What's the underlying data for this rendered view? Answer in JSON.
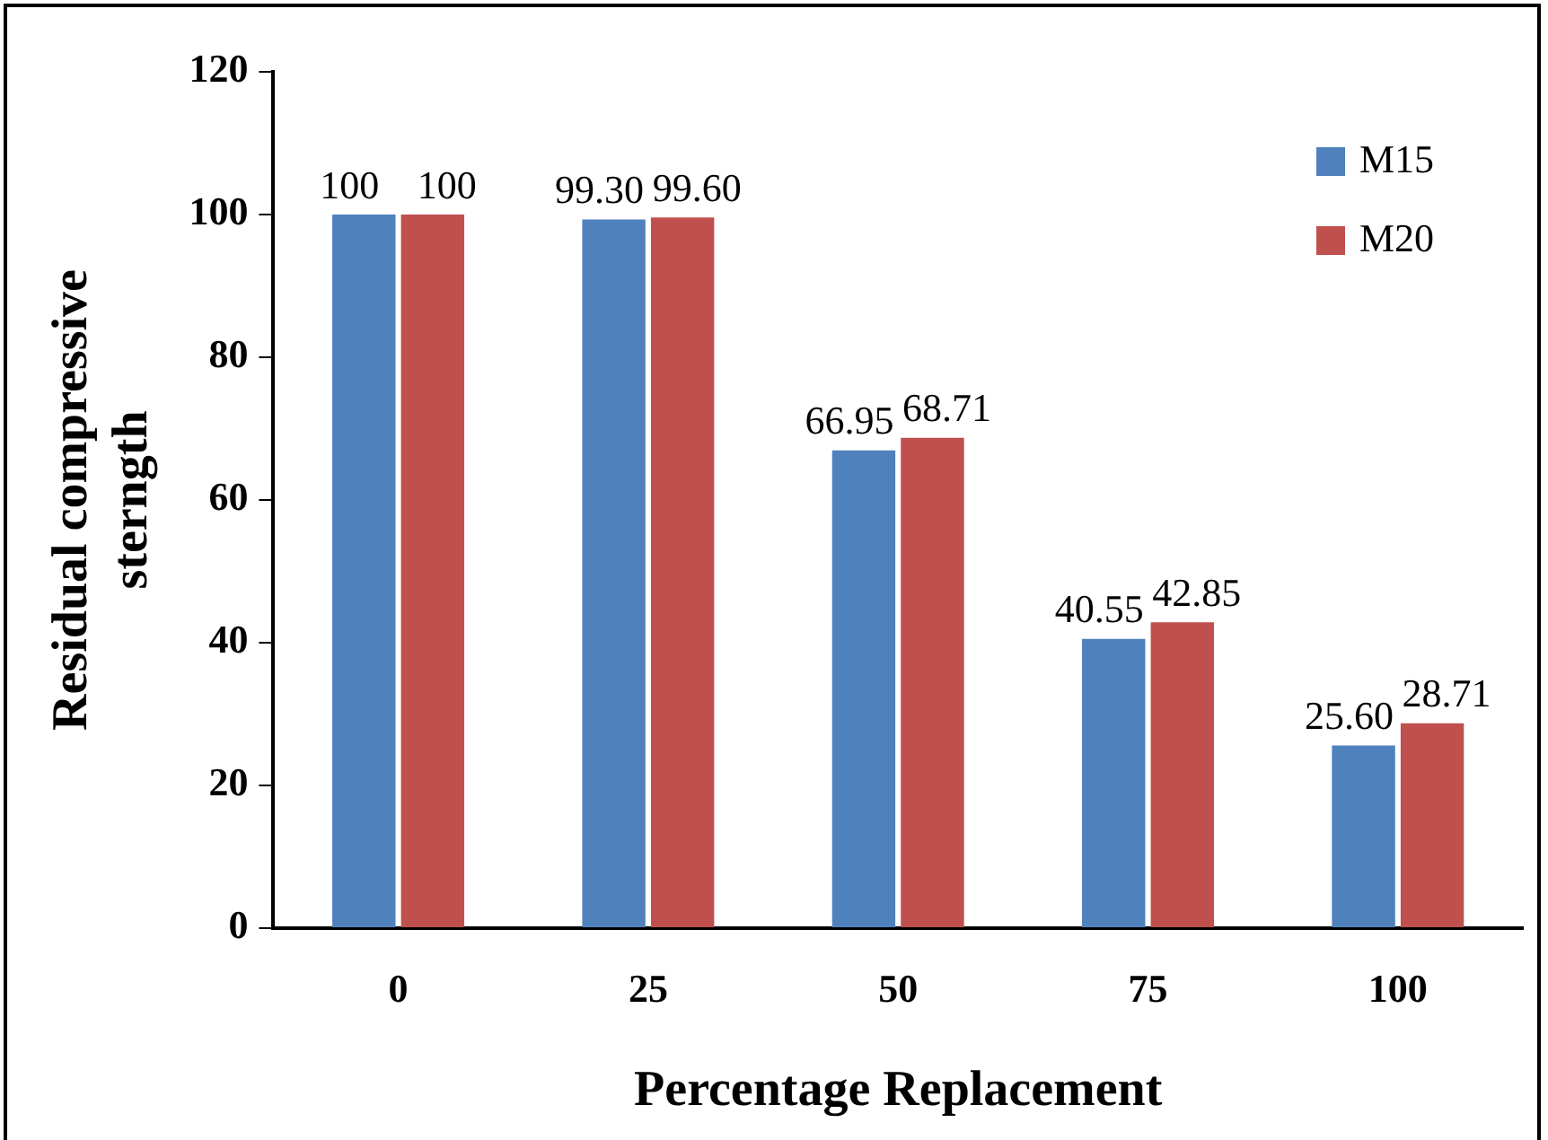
{
  "chart_data": {
    "type": "bar",
    "xlabel": "Percentage Replacement",
    "ylabel": "Residual compressive sterngth",
    "categories": [
      "0",
      "25",
      "50",
      "75",
      "100"
    ],
    "series": [
      {
        "name": "M15",
        "color": "#4f81bd",
        "values": [
          100,
          99.3,
          66.95,
          40.55,
          25.6
        ],
        "value_labels": [
          "100",
          "99.30",
          "66.95",
          "40.55",
          "25.60"
        ]
      },
      {
        "name": "M20",
        "color": "#c0504d",
        "values": [
          100,
          99.6,
          68.71,
          42.85,
          28.71
        ],
        "value_labels": [
          "100",
          "99.60",
          "68.71",
          "42.85",
          "28.71"
        ]
      }
    ],
    "ylim": [
      0,
      120
    ],
    "yticks": [
      0,
      20,
      40,
      60,
      80,
      100,
      120
    ],
    "legend": "top right"
  }
}
